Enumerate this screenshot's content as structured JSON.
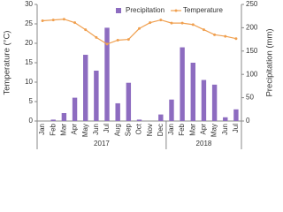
{
  "chart_data": {
    "type": "bar-line",
    "categories": [
      "Jan",
      "Feb",
      "Mar",
      "Apr",
      "May",
      "Jun",
      "Jul",
      "Aug",
      "Sep",
      "Oct",
      "Nov",
      "Dec",
      "Jan",
      "Feb",
      "Mar",
      "Apr",
      "May",
      "Jun",
      "Jul"
    ],
    "groups": [
      "2017",
      "2018"
    ],
    "series": [
      {
        "name": "Precipitation",
        "type": "bar",
        "axis": "y2",
        "color": "#8d6cc0",
        "values": [
          0,
          3,
          17,
          50,
          142,
          108,
          200,
          38,
          82,
          3,
          0,
          14,
          46,
          158,
          125,
          88,
          78,
          8,
          25
        ]
      },
      {
        "name": "Temperature",
        "type": "line",
        "axis": "y",
        "color": "#f0a050",
        "values": [
          25.8,
          26,
          26.2,
          25.3,
          23.5,
          21.5,
          19.8,
          20.8,
          21,
          23.8,
          25.3,
          26,
          25.2,
          25.2,
          24.8,
          23.5,
          22.2,
          21.8,
          21.2
        ]
      }
    ],
    "y_label": "Temperature (°C)",
    "y2_label": "Precipitation (mm)",
    "ylim": [
      0,
      30
    ],
    "yticks": [
      0,
      5,
      10,
      15,
      20,
      25,
      30
    ],
    "y2lim": [
      0,
      250
    ],
    "y2ticks": [
      0,
      50,
      100,
      150,
      200,
      250
    ],
    "legend": "top"
  }
}
